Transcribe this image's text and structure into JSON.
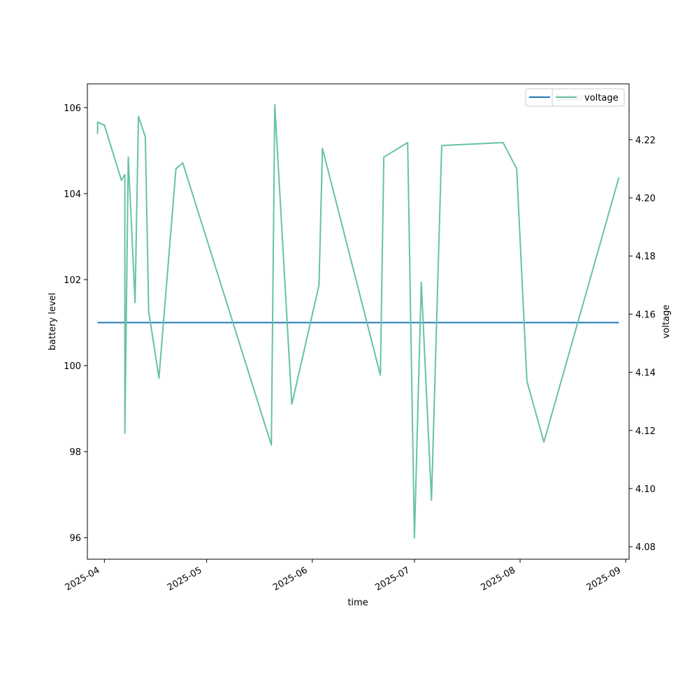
{
  "chart_data": {
    "type": "line",
    "xlabel": "time",
    "ylabel_left": "battery level",
    "ylabel_right": "voltage",
    "x_ticks": [
      "2025-04",
      "2025-05",
      "2025-06",
      "2025-07",
      "2025-08",
      "2025-09"
    ],
    "xlim": [
      "2025-03-27",
      "2025-09-02"
    ],
    "y_left_ticks": [
      96,
      98,
      100,
      102,
      104,
      106
    ],
    "y_left_lim": [
      95.5,
      106.55
    ],
    "y_right_ticks": [
      4.08,
      4.1,
      4.12,
      4.14,
      4.16,
      4.18,
      4.2,
      4.22
    ],
    "y_right_lim": [
      4.0757,
      4.2392
    ],
    "legend_position": "top-right",
    "colors": {
      "battery": "#1f77b4",
      "voltage": "#66c2a5"
    },
    "series": [
      {
        "name": "battery",
        "axis": "left",
        "points": [
          {
            "x": "2025-03-30",
            "y": 101
          },
          {
            "x": "2025-08-30",
            "y": 101
          }
        ]
      },
      {
        "name": "voltage",
        "axis": "right",
        "points": [
          {
            "x": "2025-03-30",
            "y": 4.222
          },
          {
            "x": "2025-03-30",
            "y": 4.226
          },
          {
            "x": "2025-04-01",
            "y": 4.225
          },
          {
            "x": "2025-04-06",
            "y": 4.206
          },
          {
            "x": "2025-04-07",
            "y": 4.208
          },
          {
            "x": "2025-04-07",
            "y": 4.119
          },
          {
            "x": "2025-04-08",
            "y": 4.214
          },
          {
            "x": "2025-04-09",
            "y": 4.189
          },
          {
            "x": "2025-04-10",
            "y": 4.164
          },
          {
            "x": "2025-04-11",
            "y": 4.228
          },
          {
            "x": "2025-04-13",
            "y": 4.221
          },
          {
            "x": "2025-04-14",
            "y": 4.161
          },
          {
            "x": "2025-04-17",
            "y": 4.138
          },
          {
            "x": "2025-04-22",
            "y": 4.21
          },
          {
            "x": "2025-04-24",
            "y": 4.212
          },
          {
            "x": "2025-05-20",
            "y": 4.115
          },
          {
            "x": "2025-05-21",
            "y": 4.232
          },
          {
            "x": "2025-05-26",
            "y": 4.129
          },
          {
            "x": "2025-06-03",
            "y": 4.17
          },
          {
            "x": "2025-06-04",
            "y": 4.217
          },
          {
            "x": "2025-06-21",
            "y": 4.139
          },
          {
            "x": "2025-06-22",
            "y": 4.214
          },
          {
            "x": "2025-06-29",
            "y": 4.219
          },
          {
            "x": "2025-07-01",
            "y": 4.083
          },
          {
            "x": "2025-07-03",
            "y": 4.171
          },
          {
            "x": "2025-07-06",
            "y": 4.096
          },
          {
            "x": "2025-07-09",
            "y": 4.218
          },
          {
            "x": "2025-07-27",
            "y": 4.219
          },
          {
            "x": "2025-07-31",
            "y": 4.21
          },
          {
            "x": "2025-08-03",
            "y": 4.137
          },
          {
            "x": "2025-08-08",
            "y": 4.116
          },
          {
            "x": "2025-08-30",
            "y": 4.207
          }
        ]
      }
    ]
  }
}
